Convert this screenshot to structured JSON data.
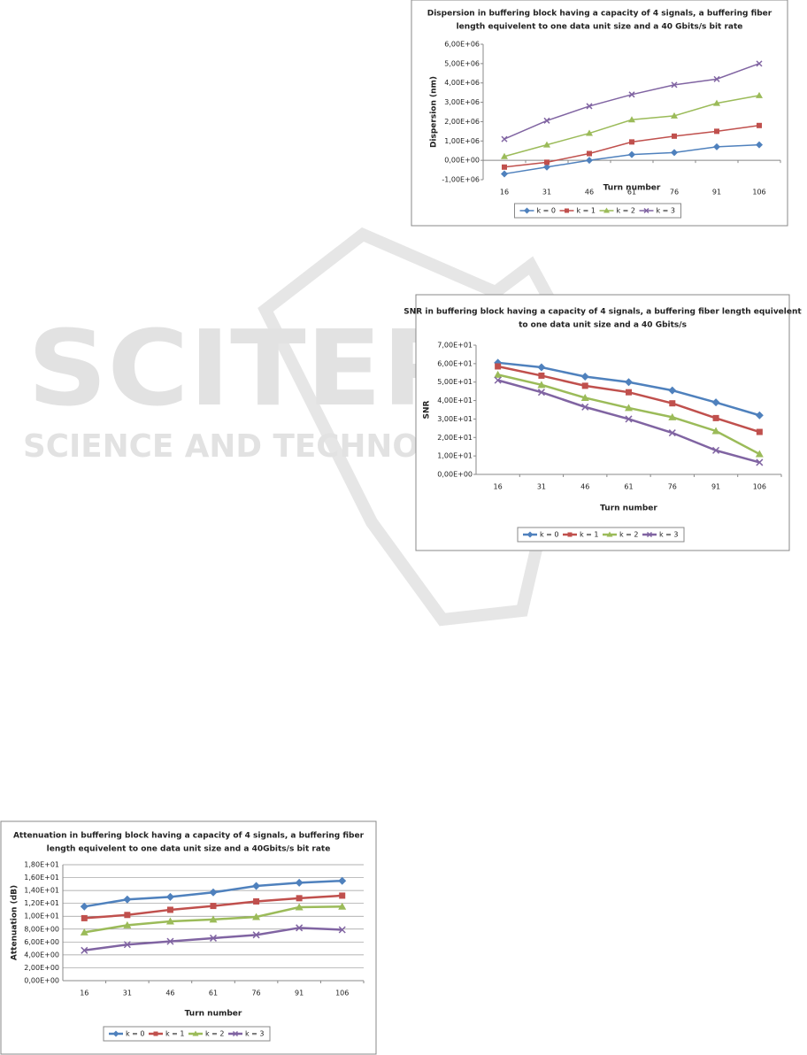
{
  "watermark": {
    "title": "SCITEPRESS",
    "subtitle": "SCIENCE AND TECHNOLOGY PUBLICATIONS"
  },
  "chart_data": [
    {
      "type": "line",
      "title": [
        "Dispersion in buffering block having a capacity of 4 signals, a buffering fiber",
        "length equivelent to one data unit size and a  40 Gbits/s bit rate"
      ],
      "y_label": "Dispersion (nm)",
      "x_label": "Turn number",
      "categories": [
        "16",
        "31",
        "46",
        "61",
        "76",
        "91",
        "106"
      ],
      "series": [
        {
          "name": "k = 0",
          "color": "#4f81bd",
          "marker": "diamond",
          "values": [
            -700000,
            -350000,
            0,
            300000,
            400000,
            700000,
            800000
          ]
        },
        {
          "name": "k = 1",
          "color": "#c0504d",
          "marker": "square",
          "values": [
            -350000,
            -100000,
            350000,
            950000,
            1250000,
            1500000,
            1800000
          ]
        },
        {
          "name": "k = 2",
          "color": "#9bbb59",
          "marker": "triangle",
          "values": [
            200000,
            800000,
            1400000,
            2100000,
            2300000,
            2950000,
            3350000
          ]
        },
        {
          "name": "k = 3",
          "color": "#8064a2",
          "marker": "x",
          "values": [
            1100000,
            2050000,
            2800000,
            3400000,
            3900000,
            4200000,
            5000000
          ]
        }
      ],
      "ylim": [
        -1000000,
        6000000
      ],
      "yticks": [
        {
          "value": -1000000,
          "label": "-1,00E+06"
        },
        {
          "value": 0,
          "label": "0,00E+00"
        },
        {
          "value": 1000000,
          "label": "1,00E+06"
        },
        {
          "value": 2000000,
          "label": "2,00E+06"
        },
        {
          "value": 3000000,
          "label": "3,00E+06"
        },
        {
          "value": 4000000,
          "label": "4,00E+06"
        },
        {
          "value": 5000000,
          "label": "5,00E+06"
        },
        {
          "value": 6000000,
          "label": "6,00E+06"
        }
      ],
      "grid": false,
      "legend": "bottom"
    },
    {
      "type": "line",
      "title": [
        "SNR in buffering block having a capacity of 4 signals, a buffering fiber length equivelent",
        "to one data unit size and a 40 Gbits/s"
      ],
      "y_label": "SNR",
      "x_label": "Turn number",
      "categories": [
        "16",
        "31",
        "46",
        "61",
        "76",
        "91",
        "106"
      ],
      "series": [
        {
          "name": "k = 0",
          "color": "#4f81bd",
          "marker": "diamond",
          "values": [
            60.5,
            58,
            53,
            50,
            45.5,
            39,
            32
          ]
        },
        {
          "name": "k = 1",
          "color": "#c0504d",
          "marker": "square",
          "values": [
            58.5,
            53.5,
            48,
            44.5,
            38.5,
            30.5,
            23
          ]
        },
        {
          "name": "k = 2",
          "color": "#9bbb59",
          "marker": "triangle",
          "values": [
            54,
            48.5,
            41.5,
            36,
            31,
            23.5,
            11
          ]
        },
        {
          "name": "k = 3",
          "color": "#8064a2",
          "marker": "x",
          "values": [
            51,
            44.5,
            36.5,
            30,
            22.5,
            13,
            6.5
          ]
        }
      ],
      "ylim": [
        0,
        70
      ],
      "yticks": [
        {
          "value": 0,
          "label": "0,00E+00"
        },
        {
          "value": 10,
          "label": "1,00E+01"
        },
        {
          "value": 20,
          "label": "2,00E+01"
        },
        {
          "value": 30,
          "label": "3,00E+01"
        },
        {
          "value": 40,
          "label": "4,00E+01"
        },
        {
          "value": 50,
          "label": "5,00E+01"
        },
        {
          "value": 60,
          "label": "6,00E+01"
        },
        {
          "value": 70,
          "label": "7,00E+01"
        }
      ],
      "grid": false,
      "legend": "bottom"
    },
    {
      "type": "line",
      "title": [
        "Attenuation in buffering block having a capacity of 4 signals, a buffering fiber",
        "length equivelent to one data unit size and a  40Gbits/s bit rate"
      ],
      "y_label": "Attenuation (dB)",
      "x_label": "Turn number",
      "categories": [
        "16",
        "31",
        "46",
        "61",
        "76",
        "91",
        "106"
      ],
      "series": [
        {
          "name": "k = 0",
          "color": "#4f81bd",
          "marker": "diamond",
          "values": [
            11.5,
            12.6,
            13,
            13.7,
            14.7,
            15.2,
            15.5
          ]
        },
        {
          "name": "k = 1",
          "color": "#c0504d",
          "marker": "square",
          "values": [
            9.7,
            10.2,
            11,
            11.6,
            12.3,
            12.8,
            13.2
          ]
        },
        {
          "name": "k = 2",
          "color": "#9bbb59",
          "marker": "triangle",
          "values": [
            7.5,
            8.6,
            9.2,
            9.5,
            9.9,
            11.4,
            11.5
          ]
        },
        {
          "name": "k = 3",
          "color": "#8064a2",
          "marker": "x",
          "values": [
            4.7,
            5.6,
            6.1,
            6.6,
            7.1,
            8.2,
            7.9
          ]
        }
      ],
      "ylim": [
        0,
        18
      ],
      "yticks": [
        {
          "value": 0,
          "label": "0,00E+00"
        },
        {
          "value": 2,
          "label": "2,00E+00"
        },
        {
          "value": 4,
          "label": "4,00E+00"
        },
        {
          "value": 6,
          "label": "6,00E+00"
        },
        {
          "value": 8,
          "label": "8,00E+00"
        },
        {
          "value": 10,
          "label": "1,00E+01"
        },
        {
          "value": 12,
          "label": "1,20E+01"
        },
        {
          "value": 14,
          "label": "1,40E+01"
        },
        {
          "value": 16,
          "label": "1,60E+01"
        },
        {
          "value": 18,
          "label": "1,80E+01"
        }
      ],
      "grid": true,
      "legend": "bottom"
    }
  ]
}
